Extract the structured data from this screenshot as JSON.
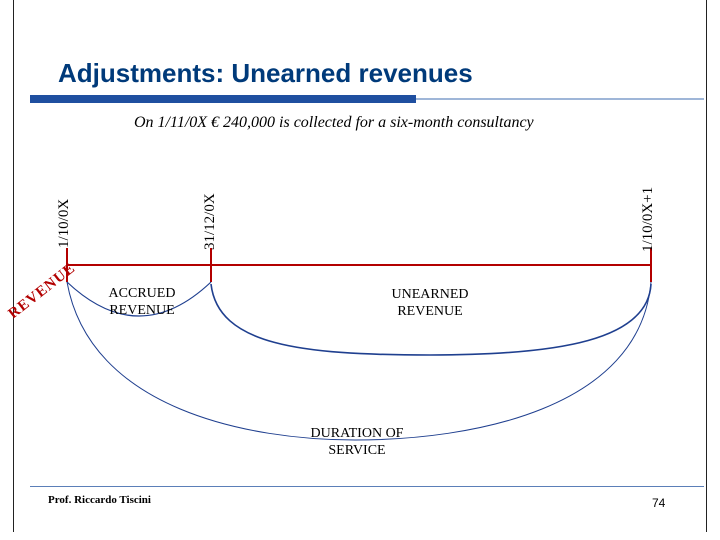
{
  "slide": {
    "title": "Adjustments: Unearned revenues",
    "subtitle": "On 1/11/0X € 240,000 is collected for a six-month consultancy",
    "colors": {
      "title": "#003a7a",
      "timeline": "#b30000",
      "arcs": "#1f3f8f",
      "accent_bar": "#1f4fa0"
    }
  },
  "timeline": {
    "start_date": "1/10/0X",
    "year_end_date": "31/12/0X",
    "end_date": "1/10/0X+1",
    "axis_label": "REVENUE"
  },
  "segments": {
    "accrued": "ACCRUED\nREVENUE",
    "unearned": "UNEARNED\nREVENUE",
    "duration": "DURATION OF\nSERVICE"
  },
  "footer": {
    "author": "Prof. Riccardo Tiscini",
    "page": "74"
  }
}
